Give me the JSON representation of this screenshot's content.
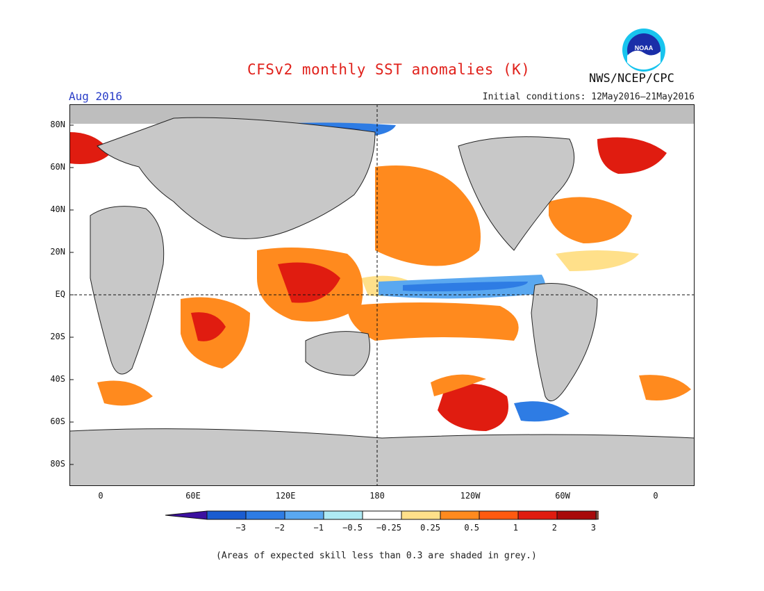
{
  "title": "CFSv2 monthly SST anomalies (K)",
  "month": "Aug 2016",
  "initial_conditions": "Initial conditions: 12May2016–21May2016",
  "agency": "NWS/NCEP/CPC",
  "logo_text": "NOAA",
  "skill_note": "(Areas of expected skill less than 0.3 are shaded in grey.)",
  "lat_labels": [
    "80N",
    "60N",
    "40N",
    "20N",
    "EQ",
    "20S",
    "40S",
    "60S",
    "80S"
  ],
  "lon_labels": [
    "0",
    "60E",
    "120E",
    "180",
    "120W",
    "60W",
    "0"
  ],
  "colorbar": {
    "labels": [
      "−3",
      "−2",
      "−1",
      "−0.5",
      "−0.25",
      "0.25",
      "0.5",
      "1",
      "2",
      "3"
    ],
    "colors": [
      "#3c10a0",
      "#1a5cd0",
      "#2e7ce4",
      "#5aa8f0",
      "#aeeaf4",
      "#ffffff",
      "#ffe08a",
      "#ff8a1e",
      "#ff5a10",
      "#e01c10",
      "#a80a0a",
      "#7a5040"
    ]
  },
  "colors": {
    "land": "#c8c8c8",
    "skill_grey": "#bebebe",
    "warm": "#ff8a1e",
    "hot": "#e01c10",
    "cool": "#2e7ce4"
  }
}
